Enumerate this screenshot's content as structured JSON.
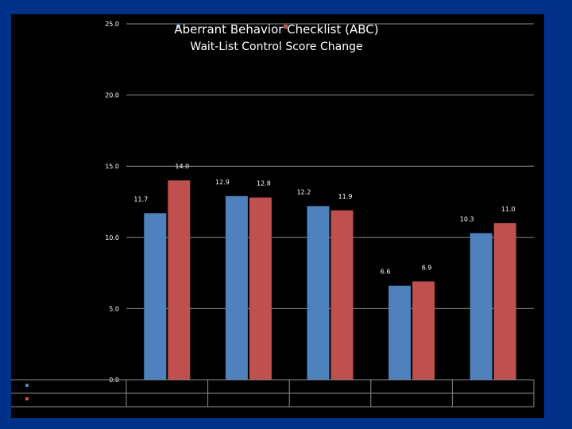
{
  "slide": {
    "background": "#003087"
  },
  "chart_data": {
    "type": "bar",
    "title": "Aberrant Behavior Checklist (ABC)",
    "subtitle": "Wait-List Control Score Change",
    "legend_position": "top",
    "legend_labels": [
      "",
      ""
    ],
    "grid": true,
    "ylim": [
      0,
      25
    ],
    "yticks": [
      "0.0",
      "5.0",
      "10.0",
      "15.0",
      "20.0",
      "25.0"
    ],
    "categories": [
      "",
      "",
      "",
      "",
      ""
    ],
    "series": [
      {
        "name": "",
        "color": "#4f81bd",
        "values": [
          11.7,
          12.9,
          12.2,
          6.6,
          10.3
        ],
        "labels": [
          "11.7",
          "12.9",
          "12.2",
          "6.6",
          "10.3"
        ]
      },
      {
        "name": "",
        "color": "#c0504d",
        "values": [
          14.0,
          12.8,
          11.9,
          6.9,
          11.0
        ],
        "labels": [
          "14.0",
          "12.8",
          "11.9",
          "6.9",
          "11.0"
        ]
      }
    ],
    "data_table": true
  }
}
